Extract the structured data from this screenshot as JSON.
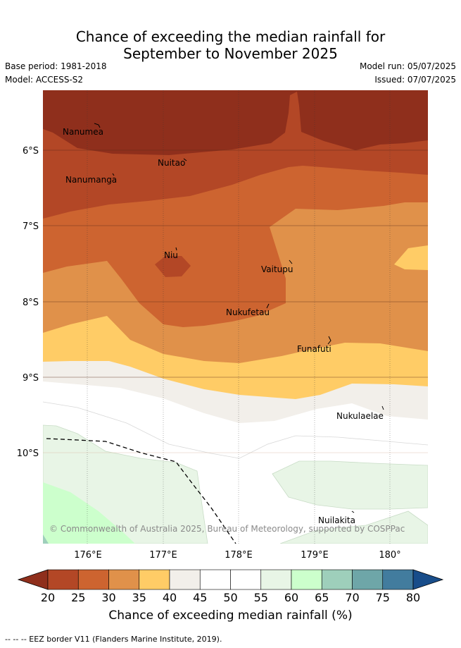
{
  "title_line1": "Chance of exceeding the median rainfall for",
  "title_line2": "September to November 2025",
  "base_period": "Base period: 1981-2018",
  "model": "Model: ACCESS-S2",
  "model_run": "Model run: 05/07/2025",
  "issued": "Issued: 07/07/2025",
  "latitude_labels": [
    "6°S",
    "7°S",
    "8°S",
    "9°S",
    "10°S"
  ],
  "longitude_labels": [
    "176°E",
    "177°E",
    "178°E",
    "179°E",
    "180°"
  ],
  "places": [
    "Nanumea",
    "Nuitao",
    "Nanumanga",
    "Niu",
    "Vaitupu",
    "Nukufetau",
    "Funafuti",
    "Nukulaelae",
    "Nuilakita"
  ],
  "copyright": "© Commonwealth of Australia 2025, Bureau of Meteorology, supported by COSPPac",
  "colorbar": {
    "label": "Chance of exceeding median rainfall (%)",
    "ticks": [
      "20",
      "25",
      "30",
      "35",
      "40",
      "45",
      "50",
      "55",
      "60",
      "65",
      "70",
      "75",
      "80"
    ],
    "colors": [
      "#8f2f1c",
      "#b34726",
      "#cd6430",
      "#e0914a",
      "#ffcc66",
      "#f2efea",
      "#ffffff",
      "#ffffff",
      "#e8f5e6",
      "#ccffcc",
      "#9ecfbb",
      "#6ea6a8",
      "#427c9e",
      "#184d8a"
    ]
  },
  "footnote": "--  --  -- EEZ border V11 (Flanders Marine Institute, 2019)."
}
